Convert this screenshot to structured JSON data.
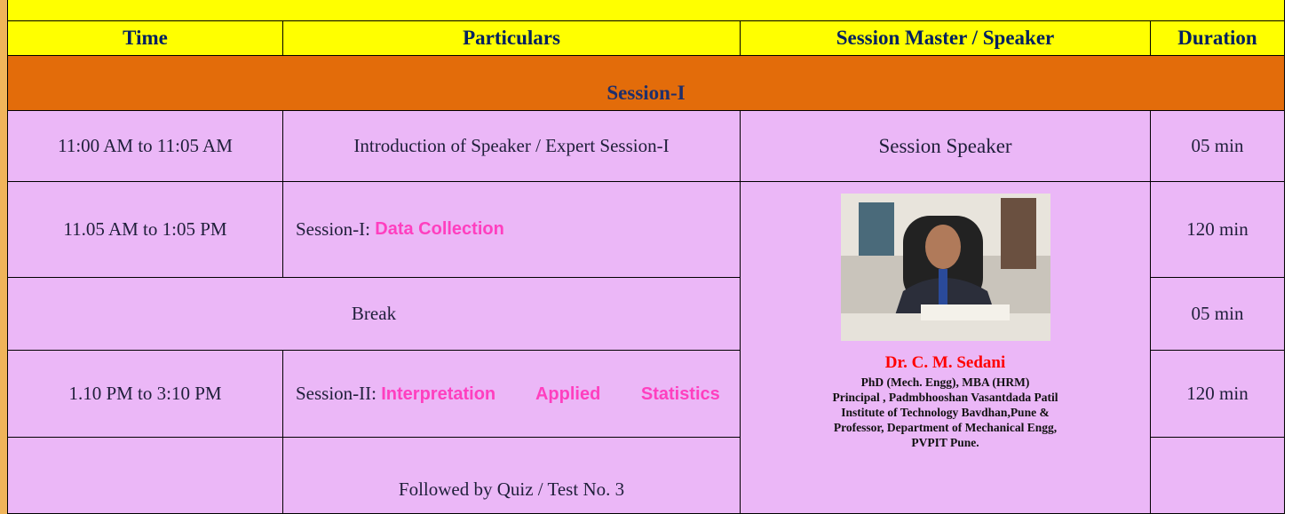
{
  "header": {
    "columns": [
      "Time",
      "Particulars",
      "Session Master / Speaker",
      "Duration"
    ]
  },
  "section": "Session-I",
  "rows": [
    {
      "time": "11:00 AM to 11:05 AM",
      "particulars": "Introduction of Speaker / Expert Session-I",
      "speaker": "Session Speaker",
      "duration": "05 min"
    },
    {
      "time": "11.05 AM to 1:05 PM",
      "prefix": "Session-I:",
      "topic": "Data Collection",
      "duration": "120 min"
    },
    {
      "particulars": "Break",
      "duration": "05 min"
    },
    {
      "time": "1.10 PM to 3:10 PM",
      "prefix": "Session-II:",
      "topic": "Interpretation Applied Statistics",
      "duration": "120 min"
    },
    {
      "particulars": "Followed by Quiz / Test No. 3"
    }
  ],
  "speaker": {
    "name": "Dr. C. M. Sedani",
    "details": [
      "PhD (Mech. Engg), MBA (HRM)",
      "Principal , Padmbhooshan Vasantdada Patil",
      "Institute of Technology Bavdhan,Pune &",
      "Professor, Department of Mechanical Engg,",
      "PVPIT Pune."
    ]
  }
}
